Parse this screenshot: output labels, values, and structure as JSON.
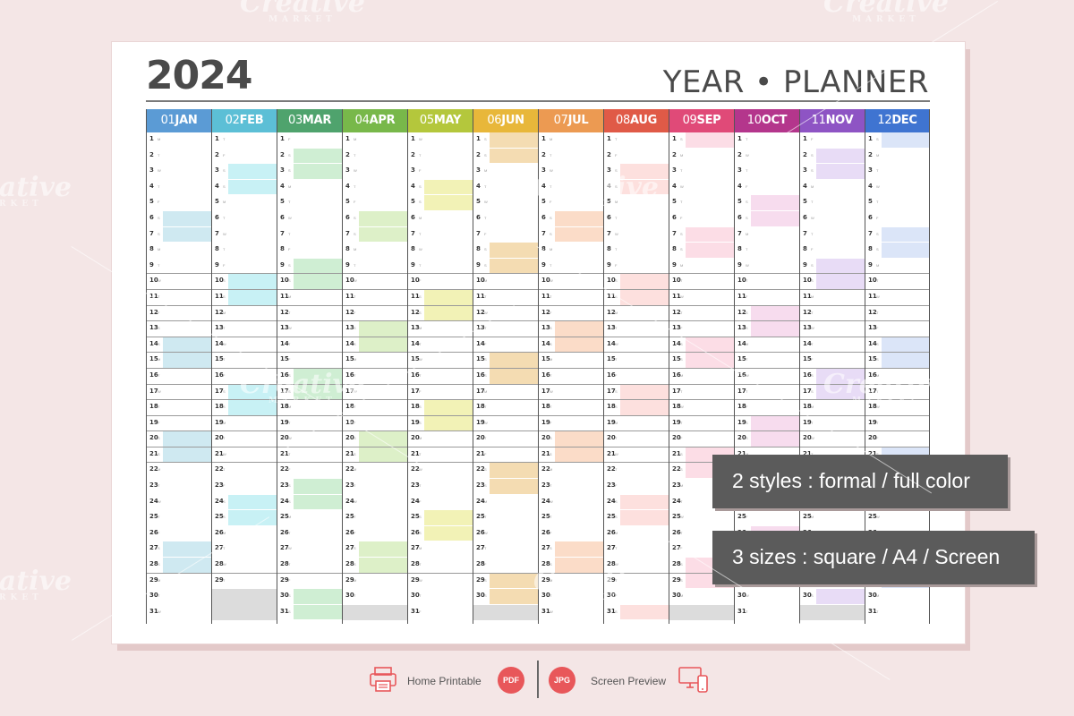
{
  "year": "2024",
  "title": "YEAR • PLANNER",
  "months": [
    {
      "num": "01",
      "name": "JAN",
      "color": "#5b9bd5",
      "tint": "#cfe9f1",
      "days": 31,
      "shade": [
        6,
        7,
        14,
        15,
        20,
        21,
        27,
        28
      ]
    },
    {
      "num": "02",
      "name": "FEB",
      "color": "#5cbfd6",
      "tint": "#c8f1f5",
      "days": 29,
      "shade": [
        3,
        4,
        10,
        11,
        17,
        18,
        24,
        25
      ]
    },
    {
      "num": "03",
      "name": "MAR",
      "color": "#4fa36d",
      "tint": "#cfeed3",
      "days": 31,
      "shade": [
        2,
        3,
        9,
        10,
        16,
        17,
        23,
        24,
        30,
        31
      ]
    },
    {
      "num": "04",
      "name": "APR",
      "color": "#78b84a",
      "tint": "#ddf0c8",
      "days": 30,
      "shade": [
        6,
        7,
        13,
        14,
        20,
        21,
        27,
        28
      ]
    },
    {
      "num": "05",
      "name": "MAY",
      "color": "#b4c73c",
      "tint": "#f2f2b6",
      "days": 31,
      "shade": [
        4,
        5,
        11,
        12,
        18,
        19,
        25,
        26
      ]
    },
    {
      "num": "06",
      "name": "JUN",
      "color": "#e8b73a",
      "tint": "#f4dcb2",
      "days": 30,
      "shade": [
        1,
        2,
        8,
        9,
        15,
        16,
        22,
        23,
        29,
        30
      ]
    },
    {
      "num": "07",
      "name": "JUL",
      "color": "#ec9a52",
      "tint": "#fbdcc8",
      "days": 31,
      "shade": [
        6,
        7,
        13,
        14,
        20,
        21,
        27,
        28
      ]
    },
    {
      "num": "08",
      "name": "AUG",
      "color": "#e05a47",
      "tint": "#fde0de",
      "days": 31,
      "shade": [
        3,
        4,
        10,
        11,
        17,
        18,
        24,
        25,
        31
      ]
    },
    {
      "num": "09",
      "name": "SEP",
      "color": "#e04a78",
      "tint": "#fcdde6",
      "days": 30,
      "shade": [
        1,
        7,
        8,
        14,
        15,
        21,
        22,
        28,
        29
      ]
    },
    {
      "num": "10",
      "name": "OCT",
      "color": "#b4368c",
      "tint": "#f7dcee",
      "days": 31,
      "shade": [
        5,
        6,
        12,
        13,
        19,
        20,
        26,
        27
      ]
    },
    {
      "num": "11",
      "name": "NOV",
      "color": "#8e54c4",
      "tint": "#e8dcf6",
      "days": 30,
      "shade": [
        2,
        3,
        9,
        10,
        16,
        17,
        23,
        24,
        30
      ]
    },
    {
      "num": "12",
      "name": "DEC",
      "color": "#3f74d1",
      "tint": "#dbe5f8",
      "days": 31,
      "shade": [
        1,
        7,
        8,
        14,
        15,
        21,
        22,
        28,
        29
      ]
    }
  ],
  "weekday_letters": [
    "M",
    "T",
    "W",
    "T",
    "F",
    "S",
    "S"
  ],
  "callouts": {
    "styles": "2 styles : formal / full color",
    "sizes": "3 sizes : square / A4 / Screen"
  },
  "footer": {
    "printable_label": "Home Printable",
    "pdf_badge": "PDF",
    "jpg_badge": "JPG",
    "screen_label": "Screen Preview"
  },
  "watermark": {
    "brand": "Creative",
    "sub": "MARKET"
  }
}
